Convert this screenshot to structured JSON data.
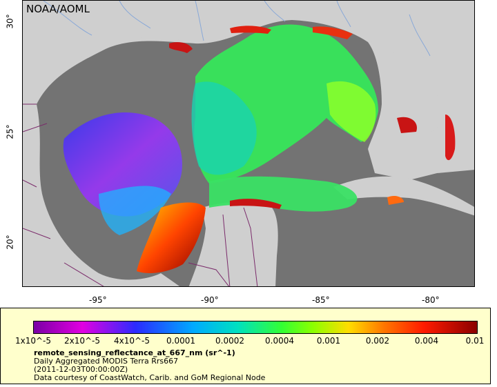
{
  "map": {
    "credit": "NOAA/AOML",
    "lon_ticks": [
      "-95°",
      "-90°",
      "-85°",
      "-80°"
    ],
    "lat_ticks": [
      "30°",
      "25°",
      "20°"
    ]
  },
  "legend": {
    "colorbar_ticks": [
      "1x10^-5",
      "2x10^-5",
      "4x10^-5",
      "0.0001",
      "0.0002",
      "0.0004",
      "0.001",
      "0.002",
      "0.004",
      "0.01"
    ],
    "variable": "remote_sensing_reflectance_at_667_nm (sr^-1)",
    "description": "Daily Aggregated MODIS Terra Rrs667",
    "time": "(2011-12-03T00:00:00Z)",
    "source": "Data courtesy of CoastWatch, Carib. and GoM Regional Node"
  },
  "colors": {
    "land": "#cfcfcf",
    "ocean_nodata": "#737373",
    "legend_bg": "#ffffcc",
    "rivers": "#88a8d8",
    "borders": "#7a2a6a"
  }
}
